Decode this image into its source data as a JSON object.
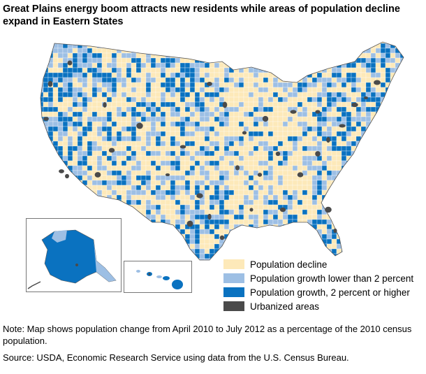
{
  "title": "Great Plains energy boom attracts new residents while areas of population decline expand in Eastern States",
  "legend": [
    {
      "label": "Population decline",
      "color": "#fde9b9"
    },
    {
      "label": "Population growth lower than 2 percent",
      "color": "#9dbfe4"
    },
    {
      "label": "Population growth, 2 percent or higher",
      "color": "#0a72c0"
    },
    {
      "label": "Urbanized areas",
      "color": "#4a4a4a"
    }
  ],
  "note": "Note: Map shows population change from April 2010 to July 2012 as a percentage of the 2010 census population.",
  "source": "Source: USDA, Economic Research Service using data from the U.S. Census Bureau.",
  "colors": {
    "decline": "#fde9b9",
    "growth_low": "#9dbfe4",
    "growth_high": "#0a72c0",
    "urban": "#4a4a4a",
    "border": "#ffffff"
  }
}
